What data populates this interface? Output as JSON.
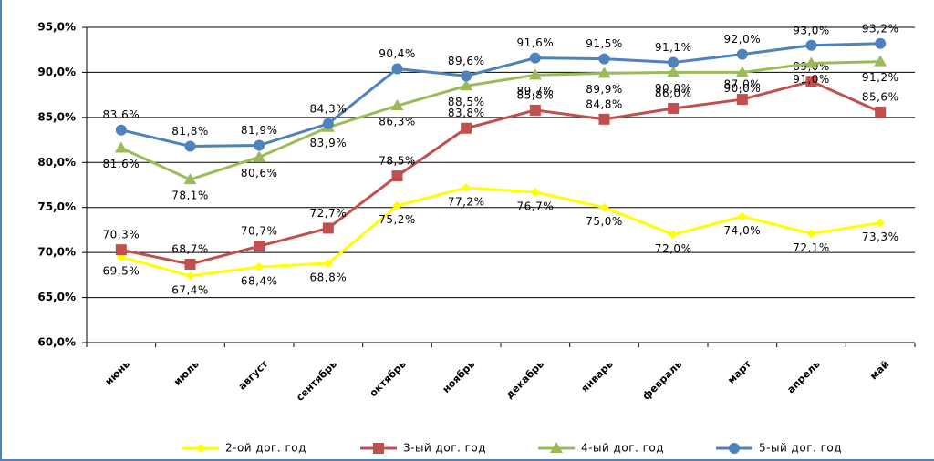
{
  "chart_data": {
    "type": "line",
    "categories": [
      "июнь",
      "июль",
      "август",
      "сентябрь",
      "октябрь",
      "ноябрь",
      "декабрь",
      "январь",
      "февраль",
      "март",
      "апрель",
      "май"
    ],
    "series": [
      {
        "name": "2-ой дог. год",
        "color": "#ffff00",
        "marker": "diamond",
        "values": [
          69.5,
          67.4,
          68.4,
          68.8,
          75.2,
          77.2,
          76.7,
          75.0,
          72.0,
          74.0,
          72.1,
          73.3
        ],
        "value_labels": [
          "69,5%",
          "67,4%",
          "68,4%",
          "68,8%",
          "75,2%",
          "77,2%",
          "76,7%",
          "75,0%",
          "72,0%",
          "74,0%",
          "72,1%",
          "73,3%"
        ]
      },
      {
        "name": "3-ый дог. год",
        "color": "#c0504d",
        "marker": "square",
        "values": [
          70.3,
          68.7,
          70.7,
          72.7,
          78.5,
          83.8,
          85.8,
          84.8,
          86.0,
          87.0,
          89.0,
          85.6
        ],
        "value_labels": [
          "70,3%",
          "68,7%",
          "70,7%",
          "72,7%",
          "78,5%",
          "83,8%",
          "85,8%",
          "84,8%",
          "86,0%",
          "87,0%",
          "89,0%",
          "85,6%"
        ]
      },
      {
        "name": "4-ый дог. год",
        "color": "#9bbb59",
        "marker": "triangle",
        "values": [
          81.6,
          78.1,
          80.6,
          83.9,
          86.3,
          88.5,
          89.7,
          89.9,
          90.0,
          90.0,
          91.0,
          91.2
        ],
        "value_labels": [
          "81,6%",
          "78,1%",
          "80,6%",
          "83,9%",
          "86,3%",
          "88,5%",
          "89,7%",
          "89,9%",
          "90,0%",
          "90,0%",
          "91,0%",
          "91,2%"
        ]
      },
      {
        "name": "5-ый дог. год",
        "color": "#4f81bd",
        "marker": "circle",
        "values": [
          83.6,
          81.8,
          81.9,
          84.3,
          90.4,
          89.6,
          91.6,
          91.5,
          91.1,
          92.0,
          93.0,
          93.2
        ],
        "value_labels": [
          "83,6%",
          "81,8%",
          "81,9%",
          "84,3%",
          "90,4%",
          "89,6%",
          "91,6%",
          "91,5%",
          "91,1%",
          "92,0%",
          "93,0%",
          "93,2%"
        ]
      }
    ],
    "ylim": [
      60,
      95
    ],
    "yticks": [
      {
        "value": 60,
        "label": "60,0%"
      },
      {
        "value": 65,
        "label": "65,0%"
      },
      {
        "value": 70,
        "label": "70,0%"
      },
      {
        "value": 75,
        "label": "75,0%"
      },
      {
        "value": 80,
        "label": "80,0%"
      },
      {
        "value": 85,
        "label": "85,0%"
      },
      {
        "value": 90,
        "label": "90,0%"
      },
      {
        "value": 95,
        "label": "95,0%"
      }
    ],
    "grid": true,
    "legend": "bottom"
  }
}
